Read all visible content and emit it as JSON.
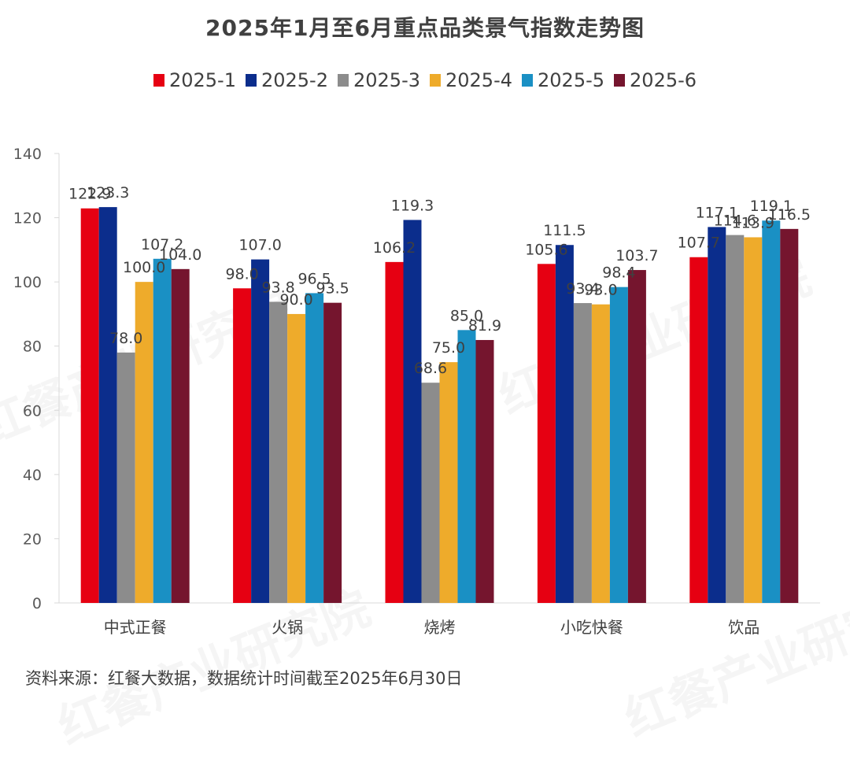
{
  "chart_data": {
    "type": "bar",
    "title": "2025年1月至6月重点品类景气指数走势图",
    "xlabel": "",
    "ylabel": "",
    "ylim": [
      0,
      140
    ],
    "yticks": [
      0,
      20,
      40,
      60,
      80,
      100,
      120,
      140
    ],
    "grid": false,
    "legend_position": "top-center",
    "categories": [
      "中式正餐",
      "火锅",
      "烧烤",
      "小吃快餐",
      "饮品"
    ],
    "series": [
      {
        "name": "2025-1",
        "color": "#E60012",
        "values": [
          122.9,
          98.0,
          106.2,
          105.6,
          107.7
        ]
      },
      {
        "name": "2025-2",
        "color": "#0B2D8C",
        "values": [
          123.3,
          107.0,
          119.3,
          111.5,
          117.1
        ]
      },
      {
        "name": "2025-3",
        "color": "#8C8C8C",
        "values": [
          78.0,
          93.8,
          68.6,
          93.4,
          114.6
        ]
      },
      {
        "name": "2025-4",
        "color": "#EEAB2B",
        "values": [
          100.0,
          90.0,
          75.0,
          93.0,
          113.9
        ]
      },
      {
        "name": "2025-5",
        "color": "#1A90C4",
        "values": [
          107.2,
          96.5,
          85.0,
          98.4,
          119.1
        ]
      },
      {
        "name": "2025-6",
        "color": "#75152E",
        "values": [
          104.0,
          93.5,
          81.9,
          103.7,
          116.5
        ]
      }
    ]
  },
  "source_note": "资料来源：红餐大数据，数据统计时间截至2025年6月30日",
  "watermark_text": "红餐产业研究院"
}
